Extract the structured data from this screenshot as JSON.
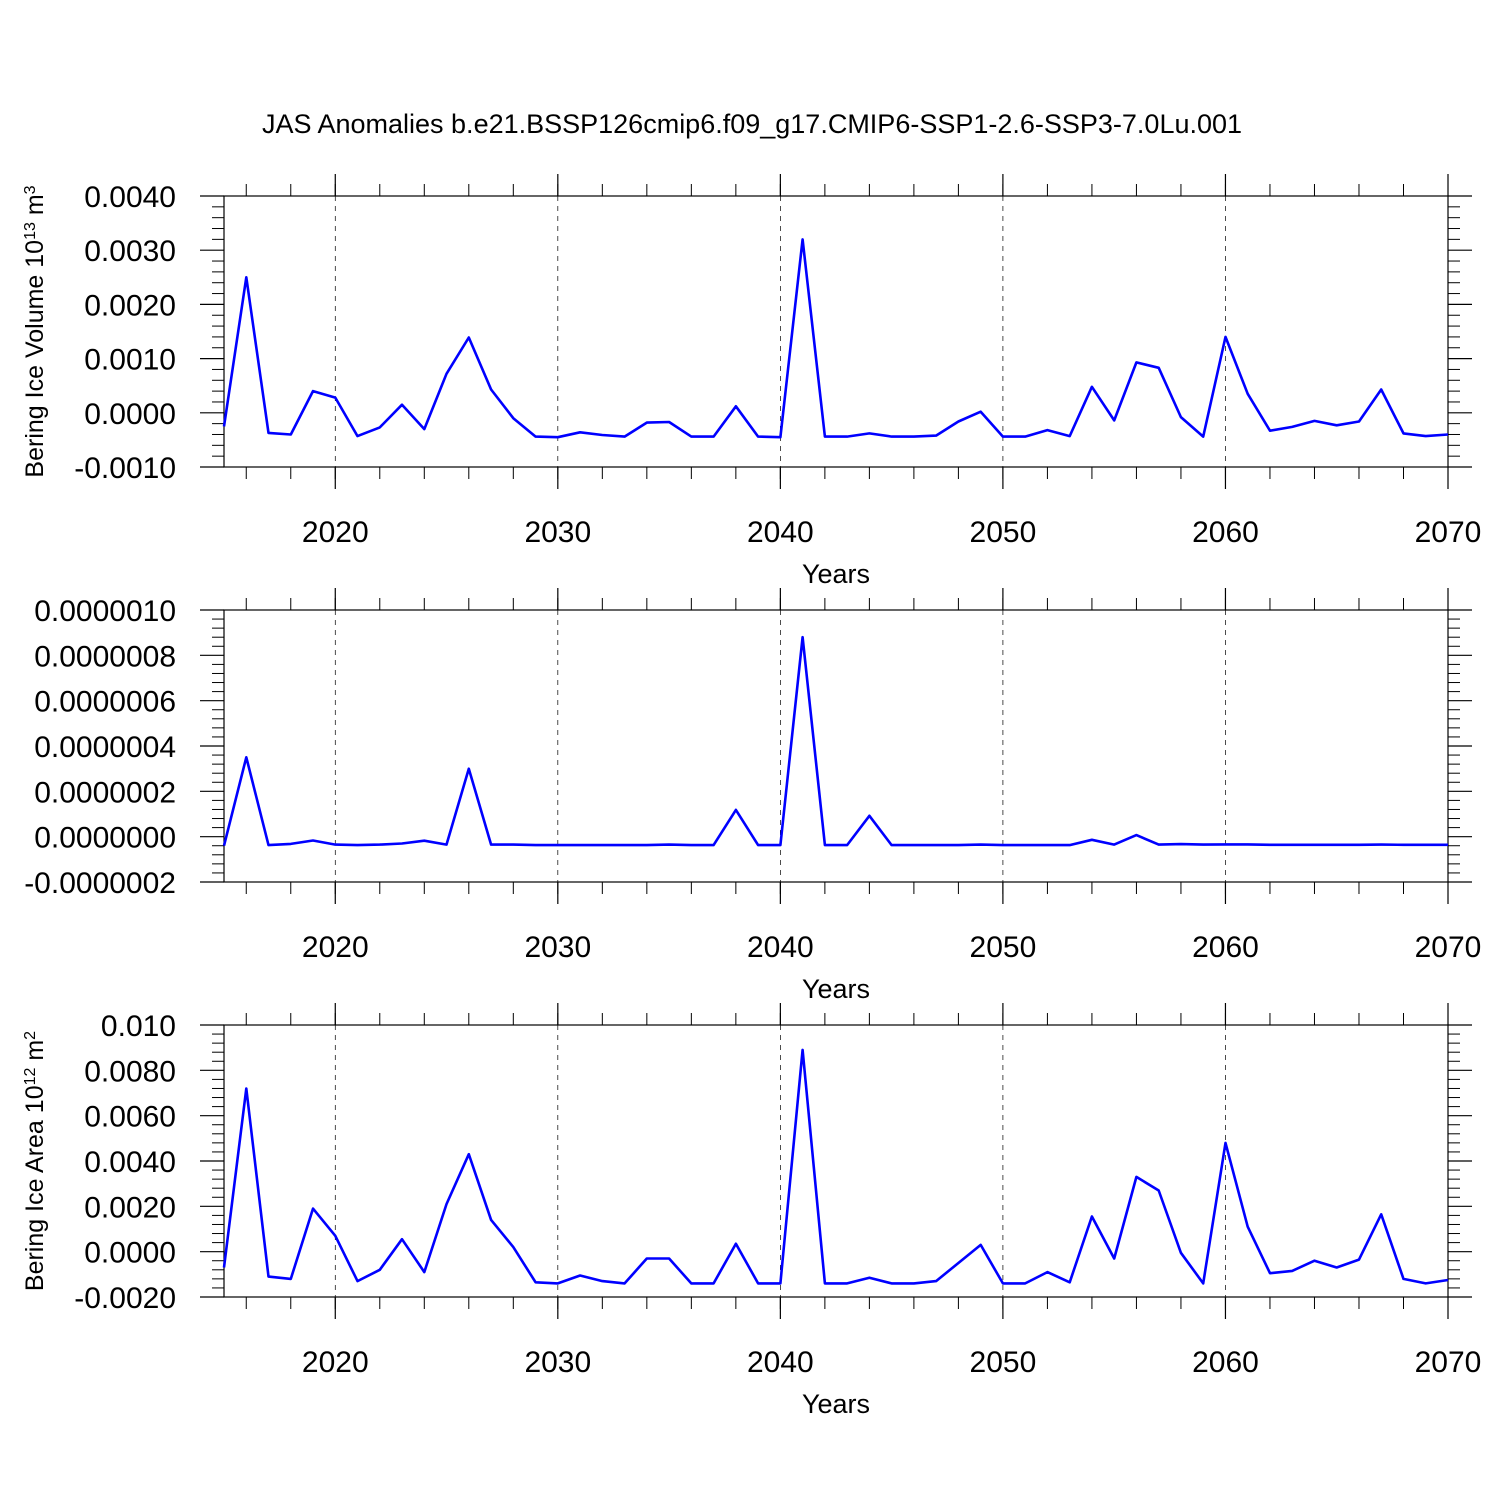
{
  "page": {
    "title": "JAS Anomalies b.e21.BSSP126cmip6.f09_g17.CMIP6-SSP1-2.6-SSP3-7.0Lu.001",
    "line_color": "#0000ff"
  },
  "chart_data": [
    {
      "type": "line",
      "xlabel": "Years",
      "ylabel": {
        "base": "Bering Ice Volume 10",
        "exp": "13",
        "unit": " m",
        "unit_exp": "3"
      },
      "xlim": [
        2015,
        2070
      ],
      "ylim": [
        -0.001,
        0.004
      ],
      "grid": "vertical dashed at major x ticks",
      "x_ticks": [
        "2020",
        "2030",
        "2040",
        "2050",
        "2060",
        "2070"
      ],
      "y_ticks": [
        "-0.0010",
        "0.0000",
        "0.0010",
        "0.0020",
        "0.0030",
        "0.0040"
      ],
      "x": [
        2015,
        2016,
        2017,
        2018,
        2019,
        2020,
        2021,
        2022,
        2023,
        2024,
        2025,
        2026,
        2027,
        2028,
        2029,
        2030,
        2031,
        2032,
        2033,
        2034,
        2035,
        2036,
        2037,
        2038,
        2039,
        2040,
        2041,
        2042,
        2043,
        2044,
        2045,
        2046,
        2047,
        2048,
        2049,
        2050,
        2051,
        2052,
        2053,
        2054,
        2055,
        2056,
        2057,
        2058,
        2059,
        2060,
        2061,
        2062,
        2063,
        2064,
        2065,
        2066,
        2067,
        2068,
        2069,
        2070
      ],
      "values": [
        -0.00025,
        0.0025,
        -0.00037,
        -0.0004,
        0.0004,
        0.00028,
        -0.00043,
        -0.00027,
        0.00015,
        -0.0003,
        0.00072,
        0.00139,
        0.00043,
        -0.0001,
        -0.00044,
        -0.00045,
        -0.00036,
        -0.00041,
        -0.00044,
        -0.00018,
        -0.00017,
        -0.00044,
        -0.00044,
        0.00012,
        -0.00044,
        -0.00045,
        0.0032,
        -0.00044,
        -0.00044,
        -0.00038,
        -0.00044,
        -0.00044,
        -0.00042,
        -0.00016,
        2e-05,
        -0.00044,
        -0.00044,
        -0.00032,
        -0.00043,
        0.00048,
        -0.00014,
        0.00093,
        0.00083,
        -8e-05,
        -0.00044,
        0.0014,
        0.00035,
        -0.00033,
        -0.00026,
        -0.00015,
        -0.00023,
        -0.00016,
        0.00043,
        -0.00038,
        -0.00043,
        -0.0004
      ]
    },
    {
      "type": "line",
      "xlabel": "Years",
      "xlim": [
        2015,
        2070
      ],
      "ylim": [
        -2e-07,
        1e-06
      ],
      "grid": "vertical dashed at major x ticks",
      "x_ticks": [
        "2020",
        "2030",
        "2040",
        "2050",
        "2060",
        "2070"
      ],
      "y_ticks": [
        "-0.0000002",
        "0.0000000",
        "0.0000002",
        "0.0000004",
        "0.0000006",
        "0.0000008",
        "0.0000010"
      ],
      "x": [
        2015,
        2016,
        2017,
        2018,
        2019,
        2020,
        2021,
        2022,
        2023,
        2024,
        2025,
        2026,
        2027,
        2028,
        2029,
        2030,
        2031,
        2032,
        2033,
        2034,
        2035,
        2036,
        2037,
        2038,
        2039,
        2040,
        2041,
        2042,
        2043,
        2044,
        2045,
        2046,
        2047,
        2048,
        2049,
        2050,
        2051,
        2052,
        2053,
        2054,
        2055,
        2056,
        2057,
        2058,
        2059,
        2060,
        2061,
        2062,
        2063,
        2064,
        2065,
        2066,
        2067,
        2068,
        2069,
        2070
      ],
      "values": [
        -4e-08,
        3.5e-07,
        -3.7e-08,
        -3.2e-08,
        -1.7e-08,
        -3.5e-08,
        -3.7e-08,
        -3.5e-08,
        -3e-08,
        -1.8e-08,
        -3.5e-08,
        3e-07,
        -3.5e-08,
        -3.5e-08,
        -3.7e-08,
        -3.7e-08,
        -3.7e-08,
        -3.7e-08,
        -3.7e-08,
        -3.7e-08,
        -3.5e-08,
        -3.7e-08,
        -3.7e-08,
        1.18e-07,
        -3.7e-08,
        -3.7e-08,
        8.8e-07,
        -3.7e-08,
        -3.7e-08,
        9.2e-08,
        -3.7e-08,
        -3.7e-08,
        -3.7e-08,
        -3.7e-08,
        -3.5e-08,
        -3.7e-08,
        -3.7e-08,
        -3.7e-08,
        -3.7e-08,
        -1.4e-08,
        -3.5e-08,
        7e-09,
        -3.5e-08,
        -3.3e-08,
        -3.5e-08,
        -3.4e-08,
        -3.4e-08,
        -3.6e-08,
        -3.6e-08,
        -3.6e-08,
        -3.6e-08,
        -3.6e-08,
        -3.5e-08,
        -3.6e-08,
        -3.6e-08,
        -3.6e-08
      ]
    },
    {
      "type": "line",
      "xlabel": "Years",
      "ylabel": {
        "base": "Bering Ice Area 10",
        "exp": "12",
        "unit": " m",
        "unit_exp": "2"
      },
      "xlim": [
        2015,
        2070
      ],
      "ylim": [
        -0.002,
        0.01
      ],
      "grid": "vertical dashed at major x ticks",
      "x_ticks": [
        "2020",
        "2030",
        "2040",
        "2050",
        "2060",
        "2070"
      ],
      "y_ticks": [
        "-0.0020",
        "0.0000",
        "0.0020",
        "0.0040",
        "0.0060",
        "0.0080",
        "0.010"
      ],
      "x": [
        2015,
        2016,
        2017,
        2018,
        2019,
        2020,
        2021,
        2022,
        2023,
        2024,
        2025,
        2026,
        2027,
        2028,
        2029,
        2030,
        2031,
        2032,
        2033,
        2034,
        2035,
        2036,
        2037,
        2038,
        2039,
        2040,
        2041,
        2042,
        2043,
        2044,
        2045,
        2046,
        2047,
        2048,
        2049,
        2050,
        2051,
        2052,
        2053,
        2054,
        2055,
        2056,
        2057,
        2058,
        2059,
        2060,
        2061,
        2062,
        2063,
        2064,
        2065,
        2066,
        2067,
        2068,
        2069,
        2070
      ],
      "values": [
        -0.0007,
        0.0072,
        -0.0011,
        -0.0012,
        0.0019,
        0.0007,
        -0.0013,
        -0.0008,
        0.00055,
        -0.0009,
        0.0021,
        0.0043,
        0.0014,
        0.0002,
        -0.00135,
        -0.0014,
        -0.00105,
        -0.0013,
        -0.0014,
        -0.0003,
        -0.0003,
        -0.0014,
        -0.0014,
        0.00035,
        -0.0014,
        -0.0014,
        0.0089,
        -0.0014,
        -0.0014,
        -0.00115,
        -0.0014,
        -0.0014,
        -0.0013,
        -0.0005,
        0.0003,
        -0.0014,
        -0.0014,
        -0.0009,
        -0.00135,
        0.00155,
        -0.0003,
        0.0033,
        0.0027,
        -5e-05,
        -0.0014,
        0.0048,
        0.0011,
        -0.00095,
        -0.00085,
        -0.0004,
        -0.0007,
        -0.00035,
        0.00165,
        -0.0012,
        -0.0014,
        -0.00125
      ]
    }
  ]
}
